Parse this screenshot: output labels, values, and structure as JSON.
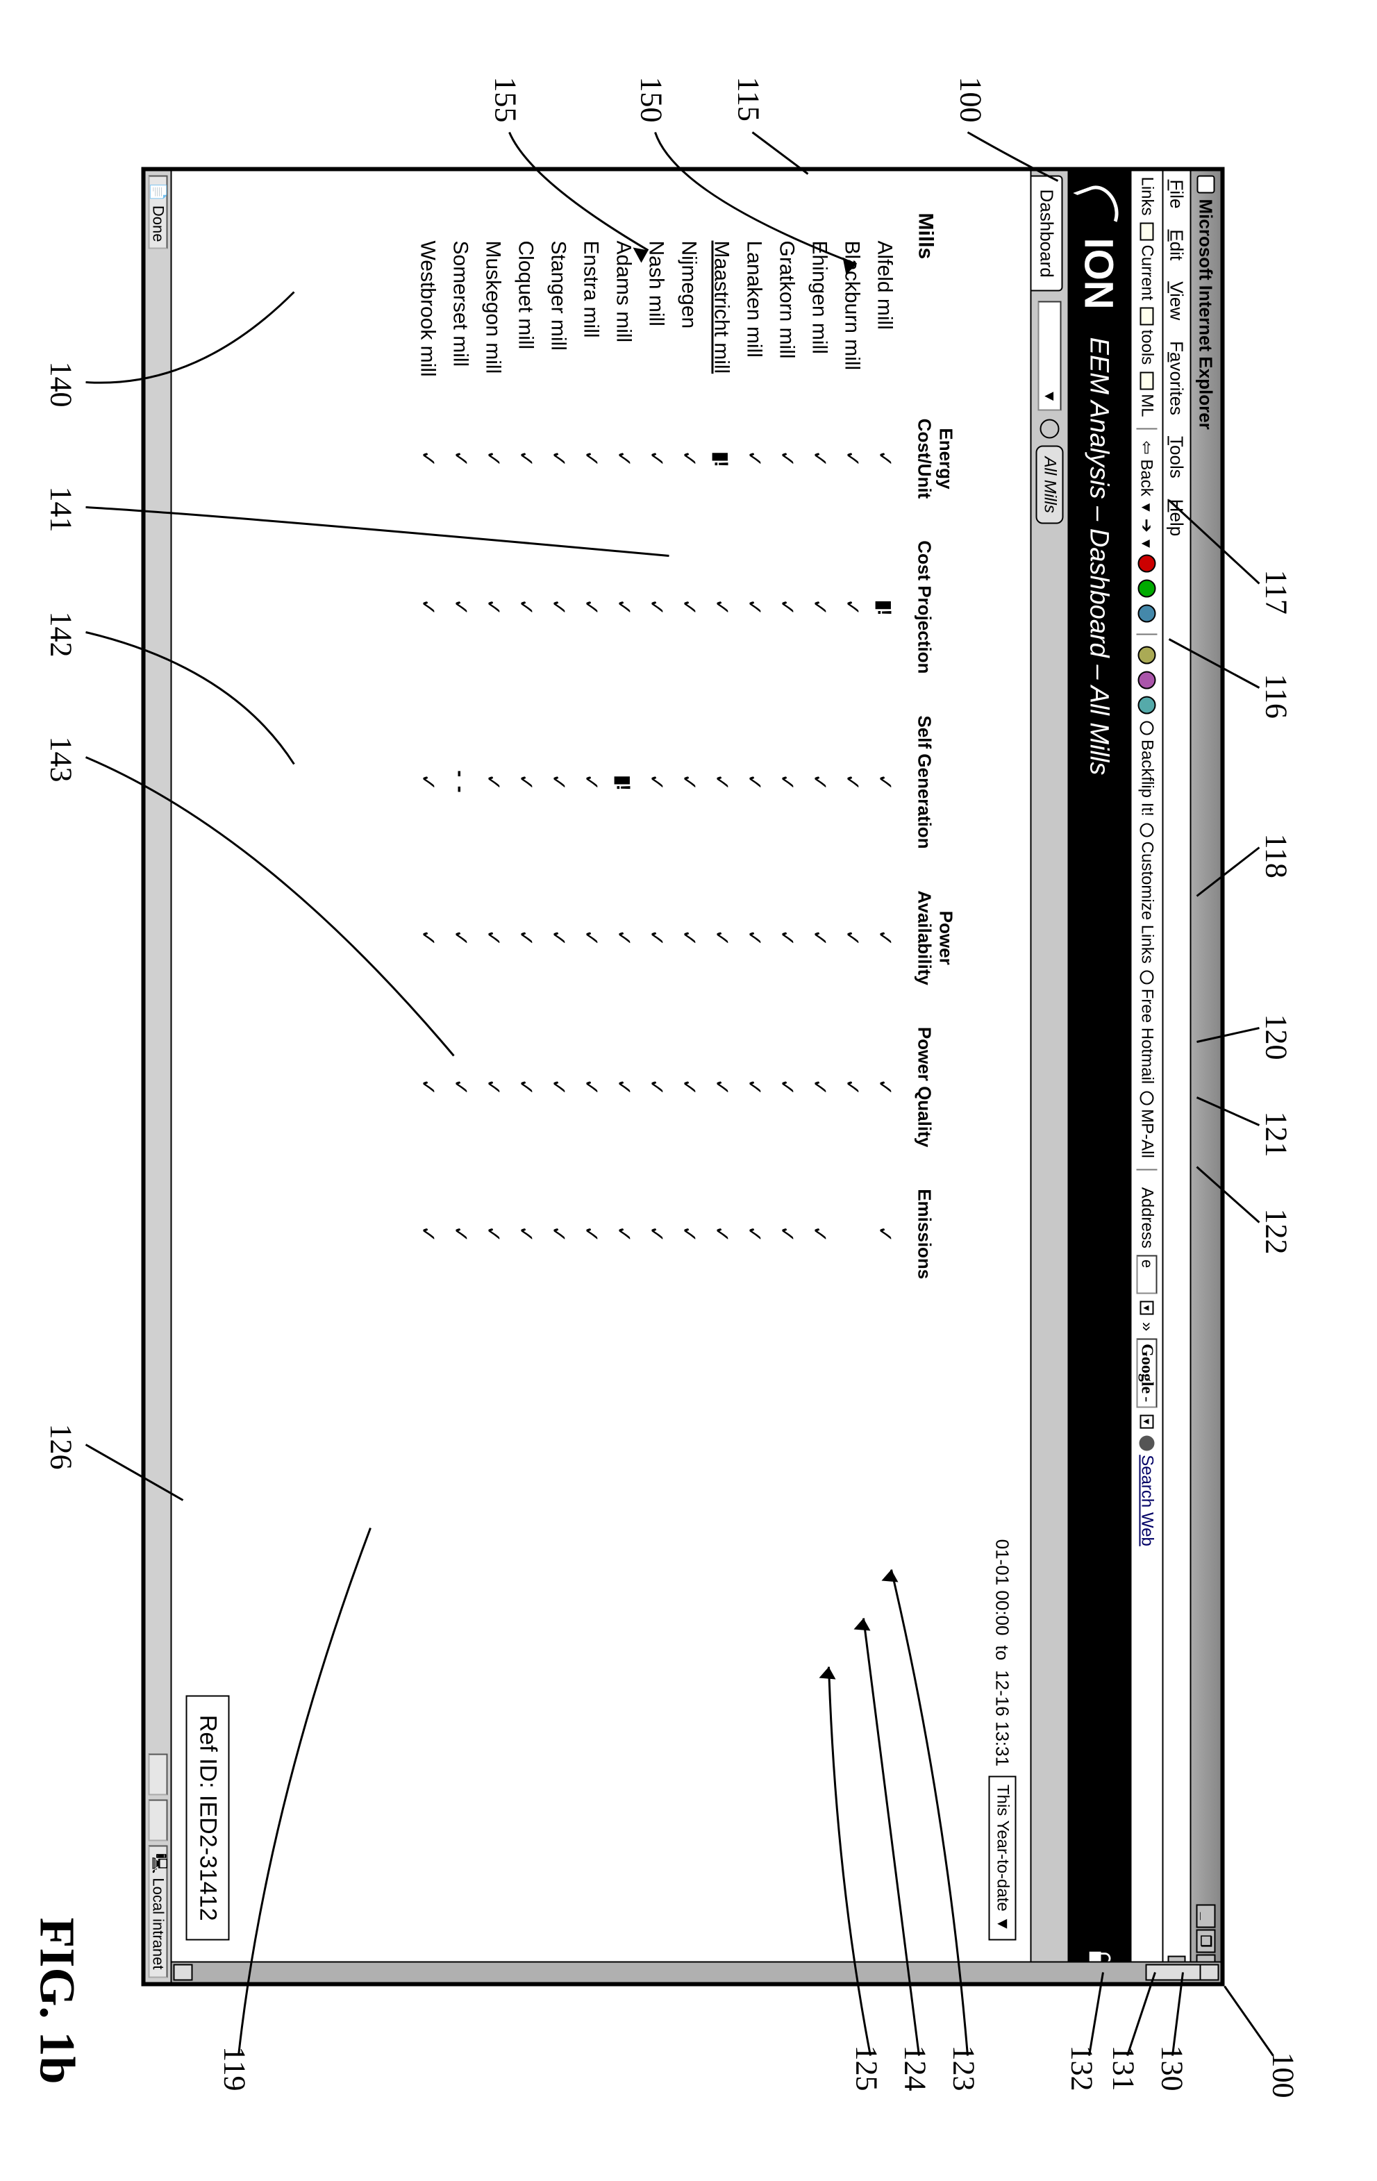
{
  "figure": {
    "label": "FIG. 1b"
  },
  "callouts": {
    "c100a": "100",
    "c100b": "100",
    "c115": "115",
    "c116": "116",
    "c117": "117",
    "c118": "118",
    "c119": "119",
    "c120": "120",
    "c121": "121",
    "c122": "122",
    "c123": "123",
    "c124": "124",
    "c125": "125",
    "c126": "126",
    "c130": "130",
    "c131": "131",
    "c132": "132",
    "c140": "140",
    "c141": "141",
    "c142": "142",
    "c143": "143",
    "c150": "150",
    "c155": "155"
  },
  "window": {
    "title": "Microsoft Internet Explorer",
    "min": "_",
    "max": "❐",
    "close": "×"
  },
  "menubar": {
    "file": "File",
    "edit": "Edit",
    "view": "View",
    "favorites": "Favorites",
    "tools": "Tools",
    "help": "Help"
  },
  "toolbar": {
    "links": "Links",
    "current": "Current",
    "tools": "tools",
    "back": "Back",
    "ML": "ML",
    "backflip": "Backflip It!",
    "customize": "Customize Links",
    "freehotmail": "Free Hotmail",
    "mpall": "MP-All",
    "address": "Address",
    "addr_icon": "e",
    "addr_drop": "▼",
    "go": "»",
    "google": "Google",
    "google_dash": "-",
    "searchweb": "Search Web",
    "more": "»"
  },
  "banner": {
    "logo": "ION",
    "title": "EEM Analysis – Dashboard – All Mills"
  },
  "tabstrip": {
    "tab": "Dashboard",
    "drop": "▼",
    "allmills": "All Mills"
  },
  "content": {
    "date_from": "01-01 00:00",
    "to": "to",
    "date_to": "12-16 13:31",
    "ytd": "This Year-to-date",
    "ytd_drop": "▼",
    "headers": {
      "mills": "Mills",
      "energy": "Energy\nCost/Unit",
      "cost": "Cost Projection",
      "selfgen": "Self Generation",
      "poweravail": "Power\nAvailability",
      "powerq": "Power Quality",
      "emissions": "Emissions"
    },
    "rows": [
      {
        "name": "Alfeld mill",
        "u": false,
        "cells": [
          "✓",
          "!",
          "✓",
          "✓",
          "✓",
          "✓"
        ]
      },
      {
        "name": "Blackburn mill",
        "u": false,
        "cells": [
          "✓",
          "✓",
          "✓",
          "✓",
          "✓",
          ""
        ]
      },
      {
        "name": "Ehingen mill",
        "u": false,
        "cells": [
          "✓",
          "✓",
          "✓",
          "✓",
          "✓",
          "✓"
        ]
      },
      {
        "name": "Gratkorn mill",
        "u": false,
        "cells": [
          "✓",
          "✓",
          "✓",
          "✓",
          "✓",
          "✓"
        ]
      },
      {
        "name": "Lanaken mill",
        "u": false,
        "cells": [
          "✓",
          "✓",
          "✓",
          "✓",
          "✓",
          "✓"
        ]
      },
      {
        "name": "Maastricht mill",
        "u": true,
        "cells": [
          "!",
          "✓",
          "✓",
          "✓",
          "✓",
          "✓"
        ]
      },
      {
        "name": "Nijmegen",
        "u": false,
        "cells": [
          "✓",
          "✓",
          "✓",
          "✓",
          "✓",
          "✓"
        ]
      },
      {
        "name": "Nash mill",
        "u": false,
        "cells": [
          "✓",
          "✓",
          "✓",
          "✓",
          "✓",
          "✓"
        ]
      },
      {
        "name": "Adams mill",
        "u": false,
        "cells": [
          "✓",
          "✓",
          "!",
          "✓",
          "✓",
          "✓"
        ]
      },
      {
        "name": "Enstra mill",
        "u": false,
        "cells": [
          "✓",
          "✓",
          "✓",
          "✓",
          "✓",
          "✓"
        ]
      },
      {
        "name": "Stanger mill",
        "u": false,
        "cells": [
          "✓",
          "✓",
          "✓",
          "✓",
          "✓",
          "✓"
        ]
      },
      {
        "name": "Cloquet mill",
        "u": false,
        "cells": [
          "✓",
          "✓",
          "✓",
          "✓",
          "✓",
          "✓"
        ]
      },
      {
        "name": "Muskegon mill",
        "u": false,
        "cells": [
          "✓",
          "✓",
          "✓",
          "✓",
          "✓",
          "✓"
        ]
      },
      {
        "name": "Somerset mill",
        "u": false,
        "cells": [
          "✓",
          "✓",
          "-",
          "✓",
          "✓",
          "✓"
        ]
      },
      {
        "name": "Westbrook mill",
        "u": false,
        "cells": [
          "✓",
          "✓",
          "✓",
          "✓",
          "✓",
          "✓"
        ]
      }
    ],
    "refid": "Ref ID: IED2-31412"
  },
  "statusbar": {
    "done": "Done",
    "intranet": "Local intranet"
  }
}
